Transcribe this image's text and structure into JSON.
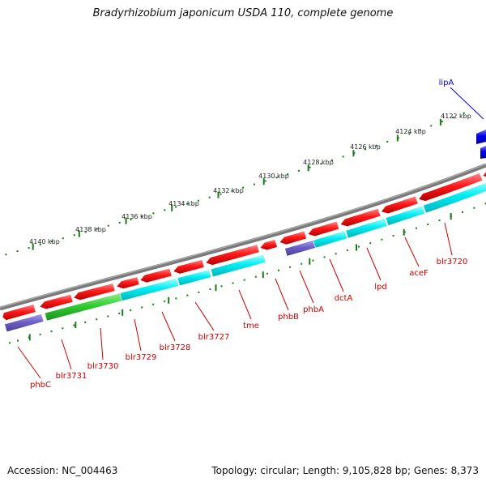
{
  "title": "Bradyrhizobium japonicum USDA 110, complete genome",
  "footer": {
    "accession": "Accession: NC_004463",
    "summary": "Topology: circular; Length: 9,105,828 bp; Genes: 8,373"
  },
  "colors": {
    "backbone": "#808080",
    "cds_forward": "#ff0000",
    "cds_reverse": "#ff0000",
    "tick": "#1a7a1a",
    "label": "#cc0000",
    "lipA_label": "#0000cc",
    "cyan": "#00e5ee",
    "green": "#33cc33",
    "purple": "#6f5fc7",
    "blue": "#0000ee"
  },
  "scale": {
    "unit": "kbp",
    "tick_labels": [
      "4140 kbp",
      "4138 kbp",
      "4136 kbp",
      "4134 kbp",
      "4132 kbp",
      "4130 kbp",
      "4128 kbp",
      "4126 kbp",
      "4124 kbp",
      "4122 kbp"
    ]
  },
  "genes": [
    {
      "name": "phbC",
      "color": "red"
    },
    {
      "name": "blr3731",
      "color": "red"
    },
    {
      "name": "blr3730",
      "color": "red"
    },
    {
      "name": "blr3729",
      "color": "red"
    },
    {
      "name": "blr3728",
      "color": "red"
    },
    {
      "name": "blr3727",
      "color": "red"
    },
    {
      "name": "tme",
      "color": "red"
    },
    {
      "name": "phbB",
      "color": "red"
    },
    {
      "name": "phbA",
      "color": "red"
    },
    {
      "name": "dctA",
      "color": "red"
    },
    {
      "name": "lpd",
      "color": "red"
    },
    {
      "name": "aceF",
      "color": "red"
    },
    {
      "name": "blr3720",
      "color": "red"
    },
    {
      "name": "lipA",
      "color": "blue"
    }
  ]
}
